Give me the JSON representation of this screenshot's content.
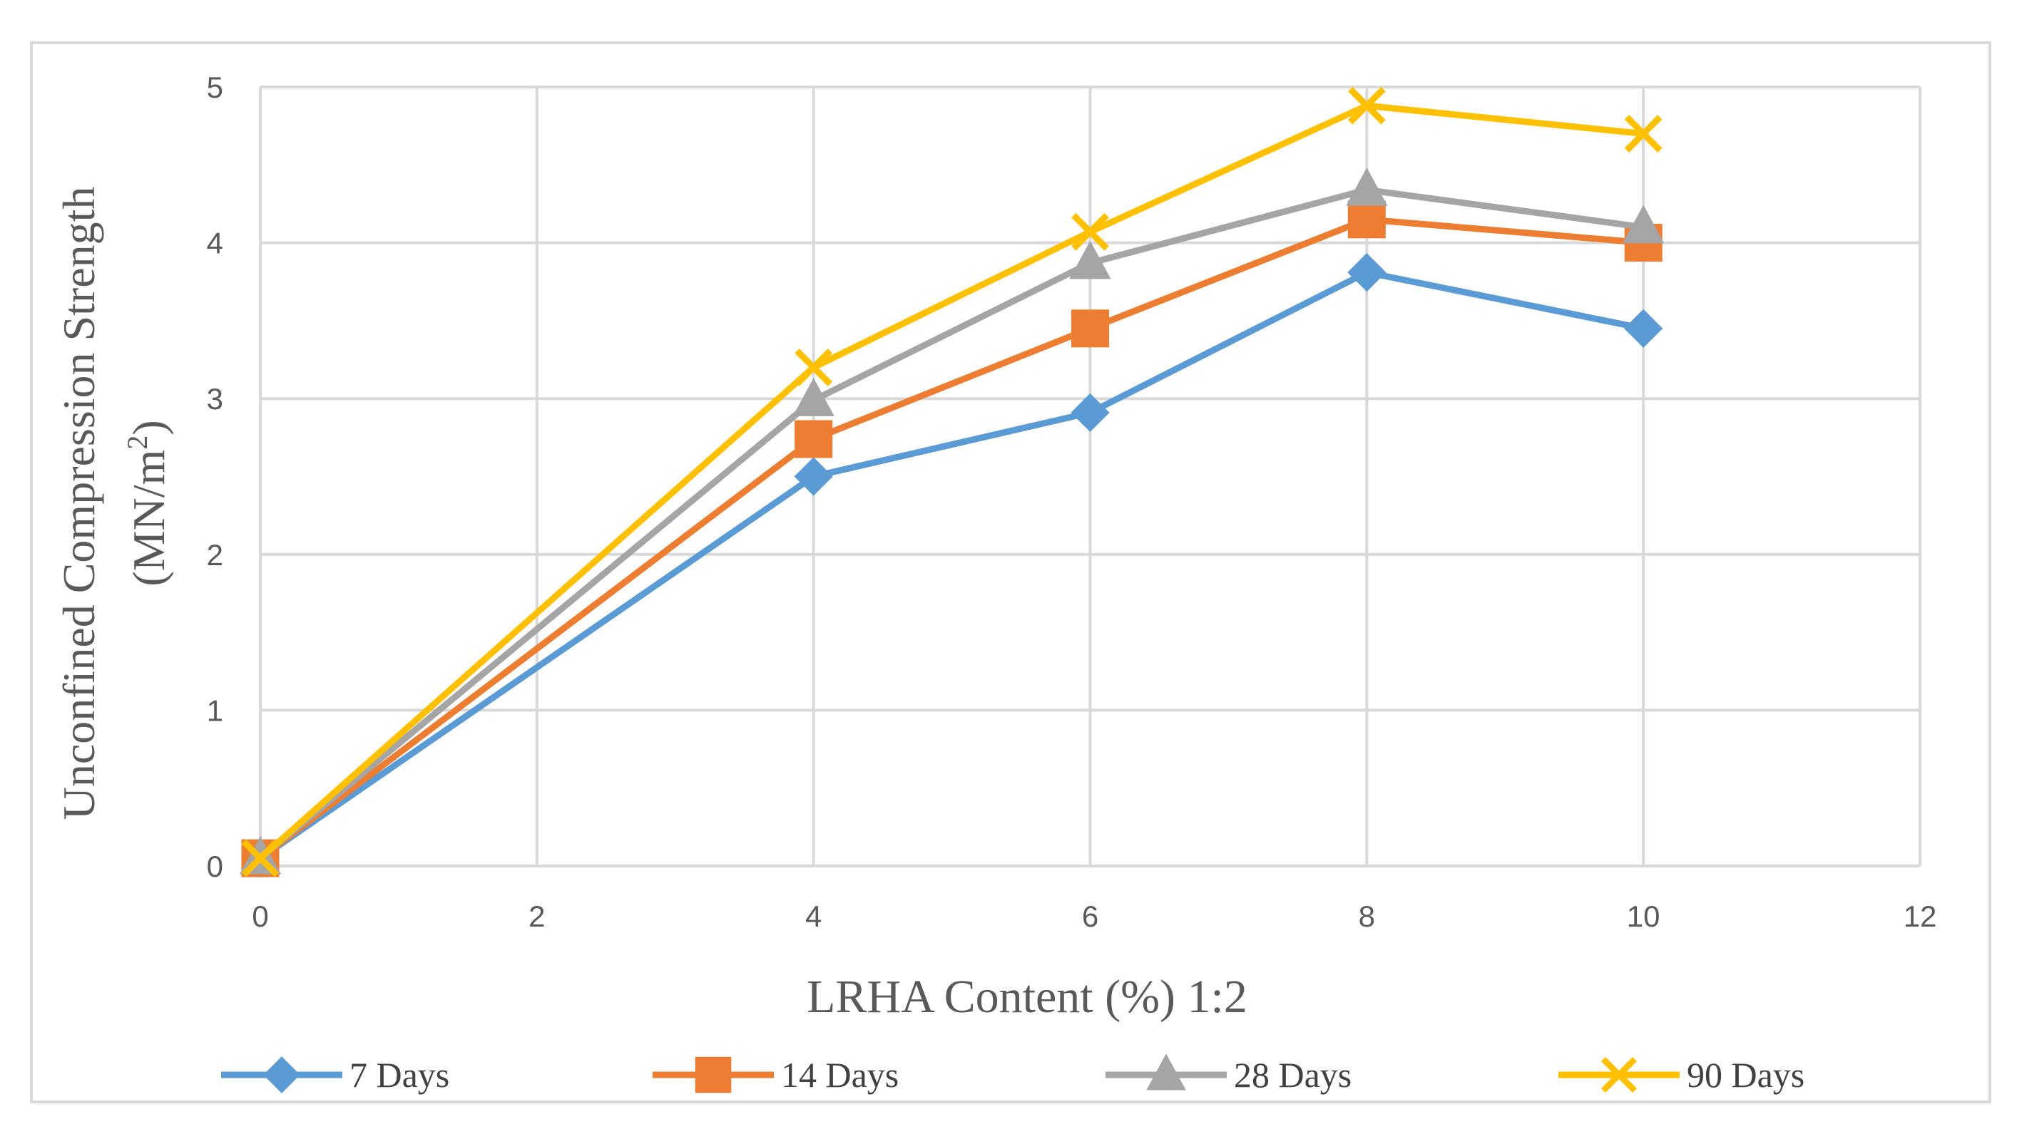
{
  "chart_data": {
    "type": "line",
    "title": "",
    "xlabel": "LRHA Content (%) 1:2",
    "ylabel_line1": "Unconfined Compression Strength",
    "ylabel_line2_prefix": "(MN/m",
    "ylabel_line2_sup": "2",
    "ylabel_line2_suffix": ")",
    "xlim": [
      0,
      12
    ],
    "ylim": [
      0,
      5
    ],
    "xticks": [
      0,
      2,
      4,
      6,
      8,
      10,
      12
    ],
    "yticks": [
      0,
      1,
      2,
      3,
      4,
      5
    ],
    "grid": true,
    "legend_position": "bottom",
    "x": [
      0,
      4,
      6,
      8,
      10
    ],
    "series": [
      {
        "name": "7 Days",
        "marker": "diamond",
        "color": "#5b9bd5",
        "values": [
          0.05,
          2.5,
          2.91,
          3.81,
          3.45
        ]
      },
      {
        "name": "14 Days",
        "marker": "square",
        "color": "#ed7d31",
        "values": [
          0.05,
          2.74,
          3.45,
          4.15,
          4.0
        ]
      },
      {
        "name": "28 Days",
        "marker": "triangle",
        "color": "#a5a5a5",
        "values": [
          0.05,
          2.99,
          3.87,
          4.34,
          4.1
        ]
      },
      {
        "name": "90 Days",
        "marker": "x",
        "color": "#ffc000",
        "values": [
          0.05,
          3.2,
          4.07,
          4.88,
          4.7
        ]
      }
    ]
  }
}
